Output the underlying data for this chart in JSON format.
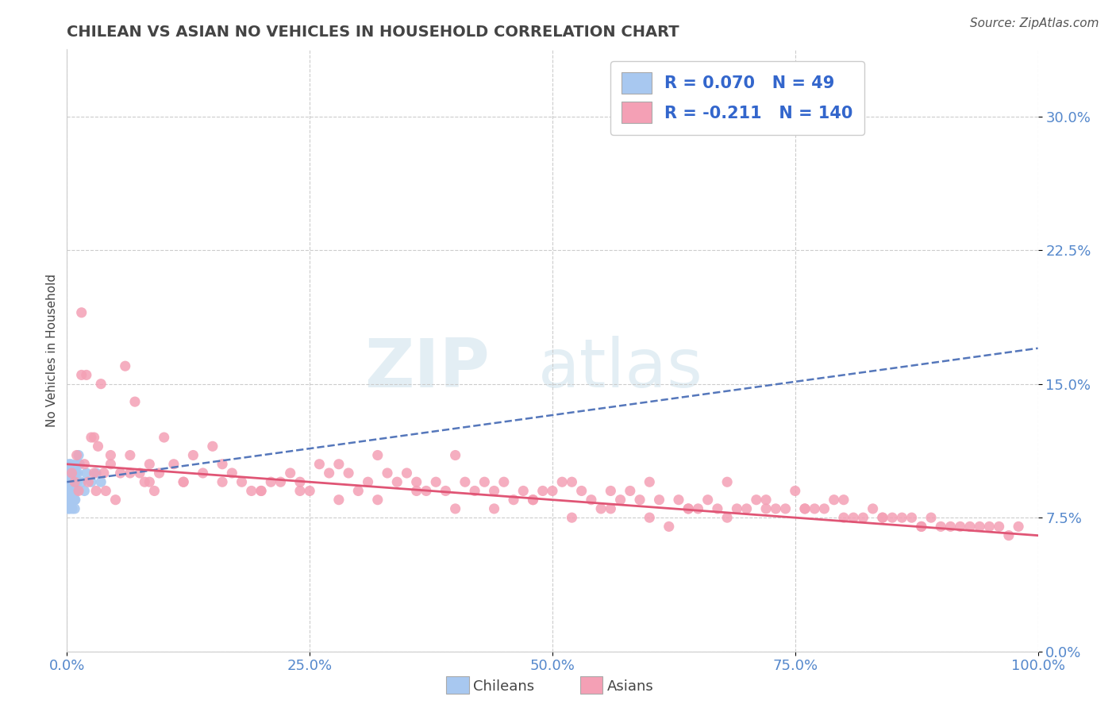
{
  "title": "CHILEAN VS ASIAN NO VEHICLES IN HOUSEHOLD CORRELATION CHART",
  "source": "Source: ZipAtlas.com",
  "ylabel": "No Vehicles in Household",
  "xlim": [
    0,
    100
  ],
  "ylim": [
    0,
    33.75
  ],
  "yticks": [
    0,
    7.5,
    15.0,
    22.5,
    30.0
  ],
  "xticks": [
    0,
    25,
    50,
    75,
    100
  ],
  "chilean_R": 0.07,
  "chilean_N": 49,
  "asian_R": -0.211,
  "asian_N": 140,
  "chilean_color": "#a8c8f0",
  "asian_color": "#f4a0b5",
  "chilean_line_color": "#5577bb",
  "asian_line_color": "#e05575",
  "title_color": "#444444",
  "axis_label_color": "#5588cc",
  "legend_R_color": "#3366cc",
  "legend_N_color": "#cc3366",
  "chilean_scatter_x": [
    0.05,
    0.08,
    0.1,
    0.12,
    0.15,
    0.18,
    0.2,
    0.22,
    0.25,
    0.28,
    0.3,
    0.32,
    0.35,
    0.38,
    0.4,
    0.42,
    0.45,
    0.48,
    0.5,
    0.52,
    0.55,
    0.58,
    0.6,
    0.62,
    0.65,
    0.68,
    0.7,
    0.72,
    0.75,
    0.78,
    0.8,
    0.82,
    0.85,
    0.88,
    0.9,
    0.92,
    0.95,
    0.98,
    1.0,
    1.05,
    1.1,
    1.2,
    1.3,
    1.5,
    1.8,
    2.0,
    2.5,
    3.0,
    3.5
  ],
  "chilean_scatter_y": [
    9.5,
    8.5,
    10.0,
    8.0,
    9.0,
    8.5,
    10.5,
    9.0,
    9.5,
    8.0,
    8.5,
    9.0,
    10.0,
    9.5,
    10.5,
    9.0,
    8.5,
    9.0,
    9.5,
    8.5,
    8.0,
    9.0,
    9.5,
    10.0,
    8.5,
    9.0,
    9.5,
    10.0,
    9.0,
    8.5,
    8.0,
    9.0,
    8.5,
    9.0,
    9.5,
    10.0,
    9.5,
    9.0,
    10.5,
    9.5,
    10.0,
    11.0,
    10.5,
    9.5,
    9.0,
    10.0,
    9.5,
    10.0,
    9.5
  ],
  "asian_scatter_x": [
    0.5,
    0.8,
    1.0,
    1.2,
    1.5,
    1.8,
    2.0,
    2.2,
    2.5,
    2.8,
    3.0,
    3.2,
    3.5,
    3.8,
    4.0,
    4.5,
    5.0,
    5.5,
    6.0,
    6.5,
    7.0,
    7.5,
    8.0,
    8.5,
    9.0,
    9.5,
    10.0,
    11.0,
    12.0,
    13.0,
    14.0,
    15.0,
    16.0,
    17.0,
    18.0,
    19.0,
    20.0,
    21.0,
    22.0,
    23.0,
    24.0,
    25.0,
    26.0,
    27.0,
    28.0,
    29.0,
    30.0,
    31.0,
    32.0,
    33.0,
    34.0,
    35.0,
    36.0,
    37.0,
    38.0,
    39.0,
    40.0,
    41.0,
    42.0,
    43.0,
    44.0,
    45.0,
    46.0,
    47.0,
    48.0,
    49.0,
    50.0,
    51.0,
    52.0,
    53.0,
    54.0,
    55.0,
    56.0,
    57.0,
    58.0,
    59.0,
    60.0,
    61.0,
    62.0,
    63.0,
    64.0,
    65.0,
    66.0,
    67.0,
    68.0,
    69.0,
    70.0,
    71.0,
    72.0,
    73.0,
    74.0,
    75.0,
    76.0,
    77.0,
    78.0,
    79.0,
    80.0,
    81.0,
    82.0,
    83.0,
    84.0,
    85.0,
    86.0,
    87.0,
    88.0,
    89.0,
    90.0,
    91.0,
    92.0,
    93.0,
    94.0,
    95.0,
    96.0,
    97.0,
    98.0,
    1.5,
    2.8,
    4.5,
    6.5,
    8.5,
    12.0,
    16.0,
    20.0,
    24.0,
    28.0,
    32.0,
    36.0,
    40.0,
    44.0,
    48.0,
    52.0,
    56.0,
    60.0,
    64.0,
    68.0,
    72.0,
    76.0,
    80.0,
    84.0,
    88.0
  ],
  "asian_scatter_y": [
    10.0,
    9.5,
    11.0,
    9.0,
    19.0,
    10.5,
    15.5,
    9.5,
    12.0,
    10.0,
    9.0,
    11.5,
    15.0,
    10.0,
    9.0,
    10.5,
    8.5,
    10.0,
    16.0,
    11.0,
    14.0,
    10.0,
    9.5,
    10.5,
    9.0,
    10.0,
    12.0,
    10.5,
    9.5,
    11.0,
    10.0,
    11.5,
    10.5,
    10.0,
    9.5,
    9.0,
    9.0,
    9.5,
    9.5,
    10.0,
    9.5,
    9.0,
    10.5,
    10.0,
    10.5,
    10.0,
    9.0,
    9.5,
    11.0,
    10.0,
    9.5,
    10.0,
    9.5,
    9.0,
    9.5,
    9.0,
    11.0,
    9.5,
    9.0,
    9.5,
    9.0,
    9.5,
    8.5,
    9.0,
    8.5,
    9.0,
    9.0,
    9.5,
    9.5,
    9.0,
    8.5,
    8.0,
    9.0,
    8.5,
    9.0,
    8.5,
    9.5,
    8.5,
    7.0,
    8.5,
    8.0,
    8.0,
    8.5,
    8.0,
    9.5,
    8.0,
    8.0,
    8.5,
    8.5,
    8.0,
    8.0,
    9.0,
    8.0,
    8.0,
    8.0,
    8.5,
    8.5,
    7.5,
    7.5,
    8.0,
    7.5,
    7.5,
    7.5,
    7.5,
    7.0,
    7.5,
    7.0,
    7.0,
    7.0,
    7.0,
    7.0,
    7.0,
    7.0,
    6.5,
    7.0,
    15.5,
    12.0,
    11.0,
    10.0,
    9.5,
    9.5,
    9.5,
    9.0,
    9.0,
    8.5,
    8.5,
    9.0,
    8.0,
    8.0,
    8.5,
    7.5,
    8.0,
    7.5,
    8.0,
    7.5,
    8.0,
    8.0,
    7.5,
    7.5,
    7.0
  ]
}
